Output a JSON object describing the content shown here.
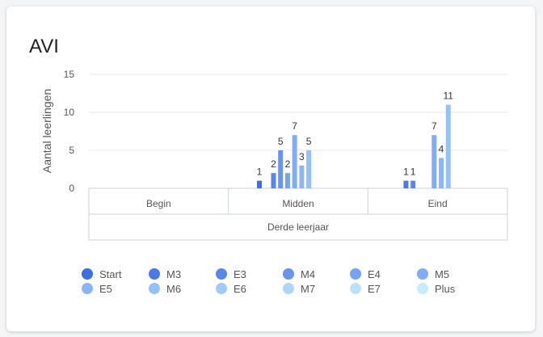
{
  "card": {
    "title": "AVI"
  },
  "chart_data": {
    "type": "bar",
    "title": "AVI",
    "ylabel": "Aantal leerlingen",
    "xlabel": "",
    "ylim": [
      0,
      15
    ],
    "yticks": [
      0,
      5,
      10,
      15
    ],
    "grid": true,
    "legend_position": "bottom",
    "categories": [
      "Begin",
      "Midden",
      "Eind"
    ],
    "group_label": "Derde leerjaar",
    "series": [
      {
        "name": "Start",
        "color": "#3d6fe0",
        "values": [
          null,
          1,
          null
        ]
      },
      {
        "name": "M3",
        "color": "#4a79e4",
        "values": [
          null,
          null,
          1
        ]
      },
      {
        "name": "E3",
        "color": "#5987ea",
        "values": [
          null,
          2,
          1
        ]
      },
      {
        "name": "M4",
        "color": "#6894ee",
        "values": [
          null,
          5,
          null
        ]
      },
      {
        "name": "E4",
        "color": "#75a2f2",
        "values": [
          null,
          2,
          null
        ]
      },
      {
        "name": "M5",
        "color": "#80adf6",
        "values": [
          null,
          7,
          7
        ]
      },
      {
        "name": "E5",
        "color": "#8ab6f8",
        "values": [
          null,
          3,
          4
        ]
      },
      {
        "name": "M6",
        "color": "#96c0fa",
        "values": [
          null,
          5,
          11
        ]
      },
      {
        "name": "E6",
        "color": "#a2cbfb",
        "values": [
          null,
          null,
          null
        ]
      },
      {
        "name": "M7",
        "color": "#aed6fc",
        "values": [
          null,
          null,
          null
        ]
      },
      {
        "name": "E7",
        "color": "#bce1fd",
        "values": [
          null,
          null,
          null
        ]
      },
      {
        "name": "Plus",
        "color": "#c8ebfe",
        "values": [
          null,
          null,
          null
        ]
      }
    ]
  }
}
